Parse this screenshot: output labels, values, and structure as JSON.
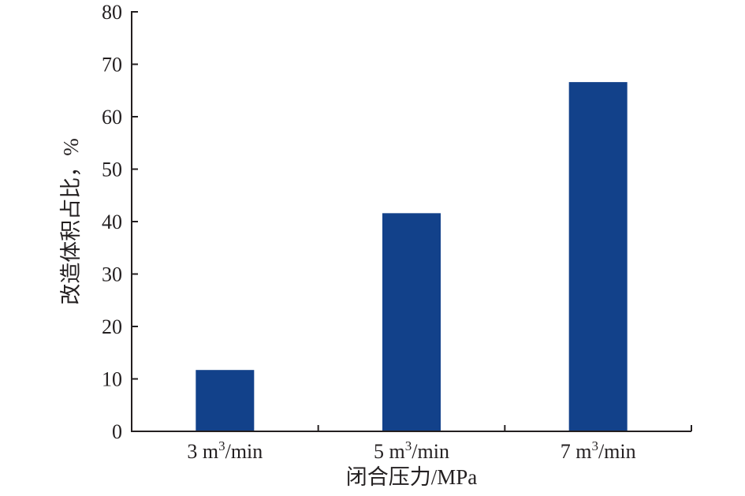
{
  "chart_data": {
    "type": "bar",
    "categories": [
      "3 m³/min",
      "5 m³/min",
      "7 m³/min"
    ],
    "category_parts": [
      {
        "pre": "3 m",
        "sup": "3",
        "post": "/min"
      },
      {
        "pre": "5 m",
        "sup": "3",
        "post": "/min"
      },
      {
        "pre": "7 m",
        "sup": "3",
        "post": "/min"
      }
    ],
    "values": [
      11.7,
      41.6,
      66.6
    ],
    "xlabel": "闭合压力/MPa",
    "ylabel": "改造体积占比，%",
    "ylim": [
      0,
      80
    ],
    "yticks": [
      0,
      10,
      20,
      30,
      40,
      50,
      60,
      70,
      80
    ],
    "grid": false,
    "bar_color": "#12418a"
  }
}
